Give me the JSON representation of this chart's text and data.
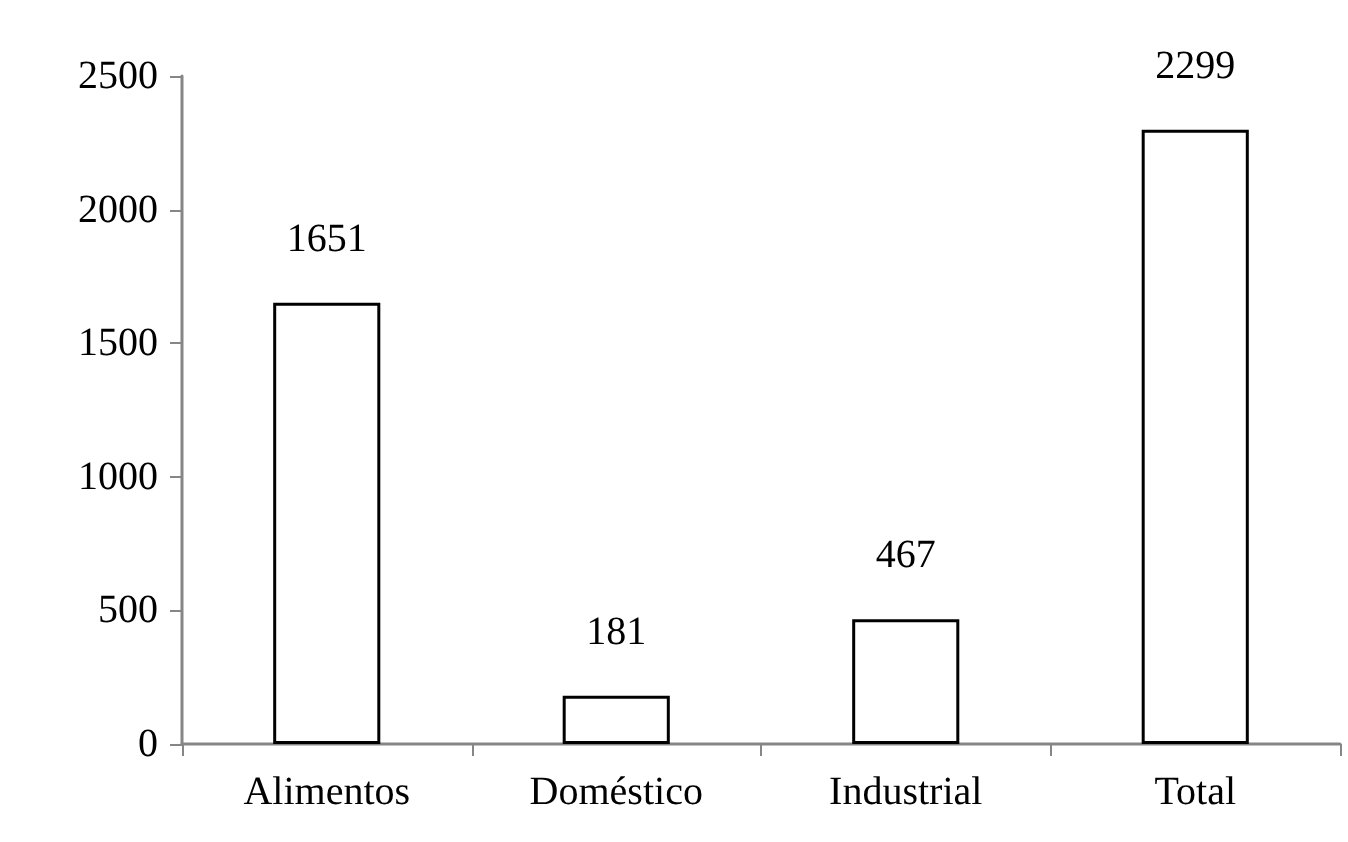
{
  "chart_data": {
    "type": "bar",
    "categories": [
      "Alimentos",
      "Doméstico",
      "Industrial",
      "Total"
    ],
    "values": [
      1651,
      181,
      467,
      2299
    ],
    "color": "#ffffff",
    "ylim": [
      0,
      2500
    ],
    "yticks": [
      0,
      500,
      1000,
      1500,
      2000,
      2500
    ],
    "grid": false,
    "data_labels": true
  }
}
